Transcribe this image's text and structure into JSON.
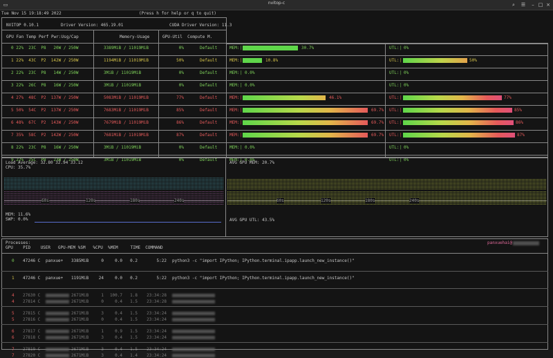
{
  "window": {
    "title": "nvitop-c"
  },
  "header": {
    "datetime": "Tue Nov 15 19:18:49 2022",
    "help": "(Press h for help or q to quit)",
    "nvitop": "NVITOP 0.10.1",
    "driver": "Driver Version: 465.19.01",
    "cuda": "CUDA Driver Version: 11.3",
    "col1": "GPU Fan Temp Perf Pwr:Usg/Cap",
    "col2": "Memory-Usage",
    "col3": "GPU-Util  Compute M."
  },
  "gpus": [
    {
      "row": "0 22%  23C  P8   20W / 250W",
      "mem": "3389MiB / 11019MiB",
      "util": "0%",
      "mode": "Default",
      "mem_pct": 30.7,
      "mem_label": "30.7%",
      "util_pct": 0,
      "util_label": "0%",
      "color": "green"
    },
    {
      "row": "1 22%  43C  P2  142W / 250W",
      "mem": "1194MiB / 11019MiB",
      "util": "50%",
      "mode": "Default",
      "mem_pct": 10.8,
      "mem_label": "10.8%",
      "util_pct": 50,
      "util_label": "50%",
      "color": "yellow"
    },
    {
      "row": "2 22%  23C  P8   14W / 250W",
      "mem": "3MiB / 11019MiB",
      "util": "0%",
      "mode": "Default",
      "mem_pct": 0,
      "mem_label": "0.0%",
      "util_pct": 0,
      "util_label": "0%",
      "color": "green"
    },
    {
      "row": "3 22%  26C  P8   16W / 250W",
      "mem": "3MiB / 11019MiB",
      "util": "0%",
      "mode": "Default",
      "mem_pct": 0,
      "mem_label": "0.0%",
      "util_pct": 0,
      "util_label": "0%",
      "color": "green"
    },
    {
      "row": "4 27%  48C  P2  137W / 250W",
      "mem": "5083MiB / 11019MiB",
      "util": "77%",
      "mode": "Default",
      "mem_pct": 46.1,
      "mem_label": "46.1%",
      "util_pct": 77,
      "util_label": "77%",
      "color": "red"
    },
    {
      "row": "5 50%  54C  P2  137W / 250W",
      "mem": "7683MiB / 11019MiB",
      "util": "85%",
      "mode": "Default",
      "mem_pct": 69.7,
      "mem_label": "69.7%",
      "util_pct": 85,
      "util_label": "85%",
      "color": "red"
    },
    {
      "row": "6 48%  67C  P2  143W / 250W",
      "mem": "7679MiB / 11019MiB",
      "util": "86%",
      "mode": "Default",
      "mem_pct": 69.7,
      "mem_label": "69.7%",
      "util_pct": 86,
      "util_label": "86%",
      "color": "red"
    },
    {
      "row": "7 35%  58C  P2  142W / 250W",
      "mem": "7681MiB / 11019MiB",
      "util": "87%",
      "mode": "Default",
      "mem_pct": 69.7,
      "mem_label": "69.7%",
      "util_pct": 87,
      "util_label": "87%",
      "color": "red"
    },
    {
      "row": "8 22%  23C  P8   16W / 250W",
      "mem": "3MiB / 11019MiB",
      "util": "0%",
      "mode": "Default",
      "mem_pct": 0,
      "mem_label": "0.0%",
      "util_pct": 0,
      "util_label": "0%",
      "color": "green"
    },
    {
      "row": "9 22%  25C  P8   23W / 250W",
      "mem": "3MiB / 11019MiB",
      "util": "0%",
      "mode": "Default",
      "mem_pct": 0,
      "mem_label": "0.0%",
      "util_pct": 0,
      "util_label": "0%",
      "color": "green"
    }
  ],
  "labels": {
    "mem": "MEM:",
    "util": "UTL:"
  },
  "host": {
    "load": "Load Average: 32.80 32.94 33.12",
    "cpu": "CPU: 35.7%",
    "mem": "MEM: 11.6%",
    "swp": "SWP: 0.0%",
    "gpu_mem": "AVG GPU MEM: 20.7%",
    "gpu_util": "AVG GPU UTL: 43.5%",
    "cpu_ticks": [
      "60s",
      "120s",
      "180s",
      "240s"
    ],
    "gpu_ticks": [
      "60s",
      "120s",
      "180s",
      "240s"
    ]
  },
  "processes": {
    "title": "Processes:",
    "user": "panxuehai@",
    "headers": "GPU    PID    USER   GPU-MEM %SM   %CPU  %MEM     TIME  COMMAND",
    "rows": [
      {
        "gpu": "0",
        "pid": "47246 C",
        "user": "panxue+",
        "mem": "3385MiB",
        "sm": "0",
        "cpu": "0.0",
        "pmem": "0.2",
        "time": "5:22",
        "cmd": "python3 -c \"import IPython; IPython.terminal.ipapp.launch_new_instance()\"",
        "color": "green",
        "blur": false
      },
      {
        "gpu": "1",
        "pid": "47246 C",
        "user": "panxue+",
        "mem": "1191MiB",
        "sm": "24",
        "cpu": "0.0",
        "pmem": "0.2",
        "time": "5:22",
        "cmd": "python3 -c \"import IPython; IPython.terminal.ipapp.launch_new_instance()\"",
        "color": "yellow",
        "blur": false
      },
      {
        "gpu": "4",
        "pid": "27630 C",
        "user": "",
        "mem": "2671MiB",
        "sm": "1",
        "cpu": "100.7",
        "pmem": "1.8",
        "time": "23:34:28",
        "cmd": "",
        "color": "red",
        "blur": true
      },
      {
        "gpu": "4",
        "pid": "27814 C",
        "user": "",
        "mem": "2671MiB",
        "sm": "0",
        "cpu": "0.4",
        "pmem": "1.5",
        "time": "23:34:28",
        "cmd": "",
        "color": "red",
        "blur": true
      },
      {
        "gpu": "5",
        "pid": "27815 C",
        "user": "",
        "mem": "2671MiB",
        "sm": "3",
        "cpu": "0.4",
        "pmem": "1.5",
        "time": "23:34:24",
        "cmd": "",
        "color": "red",
        "blur": true
      },
      {
        "gpu": "5",
        "pid": "27816 C",
        "user": "",
        "mem": "2671MiB",
        "sm": "0",
        "cpu": "0.4",
        "pmem": "1.5",
        "time": "23:34:24",
        "cmd": "",
        "color": "red",
        "blur": true
      },
      {
        "gpu": "6",
        "pid": "27817 C",
        "user": "",
        "mem": "2671MiB",
        "sm": "1",
        "cpu": "0.9",
        "pmem": "1.5",
        "time": "23:34:24",
        "cmd": "",
        "color": "red",
        "blur": true
      },
      {
        "gpu": "6",
        "pid": "27818 C",
        "user": "",
        "mem": "2671MiB",
        "sm": "3",
        "cpu": "0.4",
        "pmem": "1.5",
        "time": "23:34:24",
        "cmd": "",
        "color": "red",
        "blur": true
      },
      {
        "gpu": "7",
        "pid": "27819 C",
        "user": "",
        "mem": "2671MiB",
        "sm": "3",
        "cpu": "0.4",
        "pmem": "1.5",
        "time": "23:34:24",
        "cmd": "",
        "color": "red",
        "blur": true
      },
      {
        "gpu": "7",
        "pid": "27820 C",
        "user": "",
        "mem": "2671MiB",
        "sm": "3",
        "cpu": "0.4",
        "pmem": "1.4",
        "time": "23:34:24",
        "cmd": "",
        "color": "red",
        "blur": true
      }
    ]
  },
  "colors": {
    "green": "#7fd35a",
    "yellow": "#d8c64a",
    "red": "#e55a5a",
    "cpu_graph": "#4fa8b8",
    "mem_graph": "#b56ab3",
    "gpu_graph": "#c6d24a"
  }
}
